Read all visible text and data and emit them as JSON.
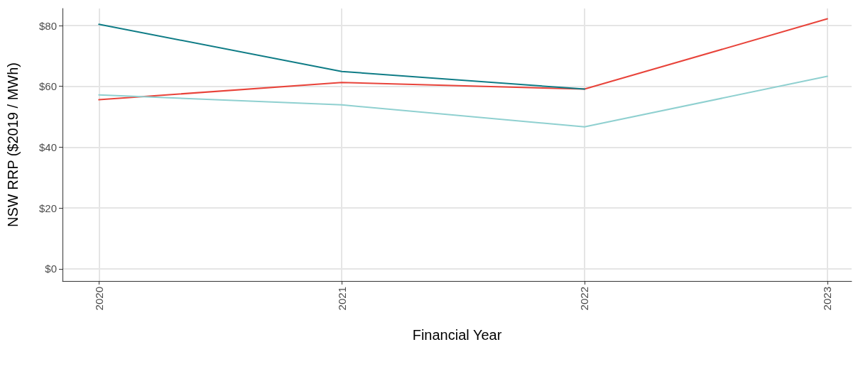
{
  "chart_data": {
    "type": "line",
    "xlabel": "Financial Year",
    "ylabel": "NSW RRP ($2019 / MWh)",
    "x": [
      2020,
      2021,
      2022,
      2023
    ],
    "series": [
      {
        "color": "#e8433a",
        "values": [
          55.6,
          61.3,
          59.1,
          82.2
        ]
      },
      {
        "color": "#8fd0d0",
        "values": [
          57.2,
          53.9,
          46.7,
          63.3
        ]
      },
      {
        "color": "#0f7c86",
        "values": [
          80.4,
          64.9,
          59.1,
          null
        ]
      }
    ],
    "xlim": [
      2019.85,
      2023.1
    ],
    "xticks": [
      2020,
      2021,
      2022,
      2023
    ],
    "ylim": [
      -4,
      85.6
    ],
    "yticks": [
      {
        "value": 0,
        "label": "$0"
      },
      {
        "value": 20,
        "label": "$20"
      },
      {
        "value": 40,
        "label": "$40"
      },
      {
        "value": 60,
        "label": "$60"
      },
      {
        "value": 80,
        "label": "$80"
      }
    ],
    "grid": true,
    "marker": "none",
    "line_style": "solid"
  }
}
